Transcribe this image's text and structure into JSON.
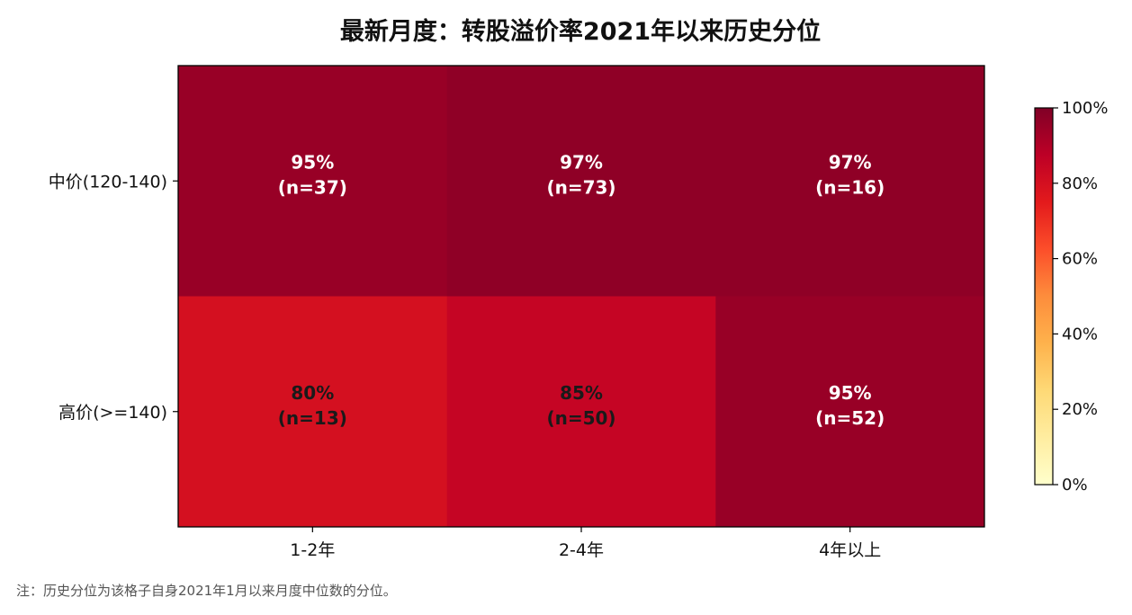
{
  "chart_data": {
    "type": "heatmap",
    "title": "最新月度：转股溢价率2021年以来历史分位",
    "x_categories": [
      "1-2年",
      "2-4年",
      "4年以上"
    ],
    "y_categories": [
      "中价(120-140)",
      "高价(>=140)"
    ],
    "values": [
      [
        95,
        97,
        97
      ],
      [
        80,
        85,
        95
      ]
    ],
    "counts": [
      [
        37,
        73,
        16
      ],
      [
        13,
        50,
        52
      ]
    ],
    "cell_labels": [
      [
        [
          "95%",
          "(n=37)"
        ],
        [
          "97%",
          "(n=73)"
        ],
        [
          "97%",
          "(n=16)"
        ]
      ],
      [
        [
          "80%",
          "(n=13)"
        ],
        [
          "85%",
          "(n=50)"
        ],
        [
          "95%",
          "(n=52)"
        ]
      ]
    ],
    "colorbar": {
      "range": [
        0,
        100
      ],
      "ticks": [
        0,
        20,
        40,
        60,
        80,
        100
      ],
      "tick_labels": [
        "0%",
        "20%",
        "40%",
        "60%",
        "80%",
        "100%"
      ],
      "colormap": "YlOrRd",
      "colors": [
        "#ffffcc",
        "#ffeda0",
        "#fed976",
        "#feb24c",
        "#fd8d3c",
        "#fc4e2a",
        "#e31a1c",
        "#bd0026",
        "#800026"
      ]
    },
    "text_colors": {
      "light": "#ffffff",
      "dark": "#1a1a1a"
    }
  },
  "note": "注：历史分位为该格子自身2021年1月以来月度中位数的分位。"
}
